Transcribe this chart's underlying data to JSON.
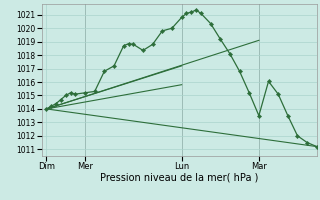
{
  "background_color": "#cceae4",
  "grid_color": "#aad4cc",
  "line_color": "#2d6e3a",
  "xlabel": "Pression niveau de la mer( hPa )",
  "ylim": [
    1010.5,
    1021.8
  ],
  "yticks": [
    1011,
    1012,
    1013,
    1014,
    1015,
    1016,
    1017,
    1018,
    1019,
    1020,
    1021
  ],
  "day_labels": [
    "Dim",
    "Mer",
    "Lun",
    "Mar"
  ],
  "day_positions": [
    0,
    4,
    14,
    22
  ],
  "vlines_x": [
    4,
    14,
    22
  ],
  "xlim": [
    -0.5,
    28
  ],
  "series1_x": [
    0,
    0.5,
    1,
    1.5,
    2,
    2.5,
    3,
    4,
    5,
    6,
    7,
    8,
    8.5,
    9,
    10,
    11,
    12,
    13,
    14,
    14.5,
    15,
    15.5,
    16,
    17,
    18,
    19,
    20,
    21,
    22,
    23,
    24,
    25,
    26,
    27,
    28
  ],
  "series1_y": [
    1014.0,
    1014.2,
    1014.4,
    1014.7,
    1015.0,
    1015.2,
    1015.1,
    1015.2,
    1015.3,
    1016.8,
    1017.2,
    1018.7,
    1018.85,
    1018.8,
    1018.35,
    1018.8,
    1019.8,
    1020.0,
    1020.8,
    1021.1,
    1021.2,
    1021.35,
    1021.1,
    1020.35,
    1019.2,
    1018.1,
    1016.8,
    1015.2,
    1013.5,
    1016.05,
    1015.1,
    1013.5,
    1012.0,
    1011.5,
    1011.2
  ],
  "straight_lines": [
    {
      "x": [
        0,
        14
      ],
      "y": [
        1014.0,
        1015.8
      ]
    },
    {
      "x": [
        0,
        14
      ],
      "y": [
        1014.0,
        1017.2
      ]
    },
    {
      "x": [
        0,
        22
      ],
      "y": [
        1014.0,
        1019.1
      ]
    },
    {
      "x": [
        0,
        28
      ],
      "y": [
        1014.0,
        1011.2
      ]
    }
  ]
}
